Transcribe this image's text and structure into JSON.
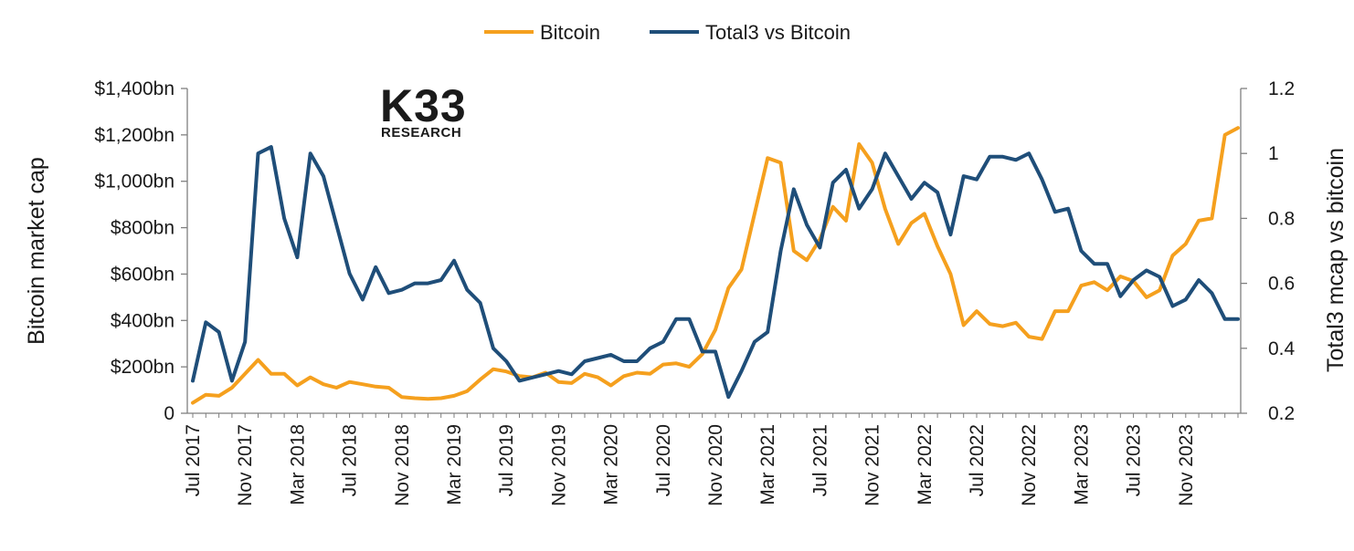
{
  "chart_data": {
    "type": "line",
    "title": "",
    "logo": {
      "main": "K33",
      "sub": "RESEARCH"
    },
    "legend": {
      "placement": "top-center"
    },
    "y_left": {
      "label": "Bitcoin market cap",
      "lim": [
        0,
        1400
      ],
      "ticks": [
        0,
        200,
        400,
        600,
        800,
        1000,
        1200,
        1400
      ],
      "tick_labels": [
        "0",
        "$200bn",
        "$400bn",
        "$600bn",
        "$800bn",
        "$1,000bn",
        "$1,200bn",
        "$1,400bn"
      ]
    },
    "y_right": {
      "label": "Total3 mcap vs bitcoin",
      "lim": [
        0.2,
        1.2
      ],
      "ticks": [
        0.2,
        0.4,
        0.6,
        0.8,
        1.0,
        1.2
      ],
      "tick_labels": [
        "0.2",
        "0.4",
        "0.6",
        "0.8",
        "1",
        "1.2"
      ]
    },
    "x": [
      "2017-07",
      "2017-08",
      "2017-09",
      "2017-10",
      "2017-11",
      "2017-12",
      "2018-01",
      "2018-02",
      "2018-03",
      "2018-04",
      "2018-05",
      "2018-06",
      "2018-07",
      "2018-08",
      "2018-09",
      "2018-10",
      "2018-11",
      "2018-12",
      "2019-01",
      "2019-02",
      "2019-03",
      "2019-04",
      "2019-05",
      "2019-06",
      "2019-07",
      "2019-08",
      "2019-09",
      "2019-10",
      "2019-11",
      "2019-12",
      "2020-01",
      "2020-02",
      "2020-03",
      "2020-04",
      "2020-05",
      "2020-06",
      "2020-07",
      "2020-08",
      "2020-09",
      "2020-10",
      "2020-11",
      "2020-12",
      "2021-01",
      "2021-02",
      "2021-03",
      "2021-04",
      "2021-05",
      "2021-06",
      "2021-07",
      "2021-08",
      "2021-09",
      "2021-10",
      "2021-11",
      "2021-12",
      "2022-01",
      "2022-02",
      "2022-03",
      "2022-04",
      "2022-05",
      "2022-06",
      "2022-07",
      "2022-08",
      "2022-09",
      "2022-10",
      "2022-11",
      "2022-12",
      "2023-01",
      "2023-02",
      "2023-03",
      "2023-04",
      "2023-05",
      "2023-06",
      "2023-07",
      "2023-08",
      "2023-09",
      "2023-10",
      "2023-11",
      "2023-12",
      "2024-01",
      "2024-02",
      "2024-03"
    ],
    "x_tick_labels": [
      {
        "x": "2017-07",
        "label": "Jul 2017"
      },
      {
        "x": "2017-11",
        "label": "Nov 2017"
      },
      {
        "x": "2018-03",
        "label": "Mar 2018"
      },
      {
        "x": "2018-07",
        "label": "Jul 2018"
      },
      {
        "x": "2018-11",
        "label": "Nov 2018"
      },
      {
        "x": "2019-03",
        "label": "Mar 2019"
      },
      {
        "x": "2019-07",
        "label": "Jul 2019"
      },
      {
        "x": "2019-11",
        "label": "Nov 2019"
      },
      {
        "x": "2020-03",
        "label": "Mar 2020"
      },
      {
        "x": "2020-07",
        "label": "Jul 2020"
      },
      {
        "x": "2020-11",
        "label": "Nov 2020"
      },
      {
        "x": "2021-03",
        "label": "Mar 2021"
      },
      {
        "x": "2021-07",
        "label": "Jul 2021"
      },
      {
        "x": "2021-11",
        "label": "Nov 2021"
      },
      {
        "x": "2022-03",
        "label": "Mar 2022"
      },
      {
        "x": "2022-07",
        "label": "Jul 2022"
      },
      {
        "x": "2022-11",
        "label": "Nov 2022"
      },
      {
        "x": "2023-03",
        "label": "Mar 2023"
      },
      {
        "x": "2023-07",
        "label": "Jul 2023"
      },
      {
        "x": "2023-11",
        "label": "Nov 2023"
      }
    ],
    "series": [
      {
        "name": "Bitcoin",
        "axis": "left",
        "color": "#F5A01E",
        "values": [
          45,
          80,
          75,
          110,
          170,
          230,
          170,
          170,
          120,
          155,
          125,
          110,
          135,
          125,
          115,
          110,
          70,
          65,
          62,
          65,
          75,
          95,
          145,
          190,
          180,
          160,
          155,
          175,
          135,
          130,
          170,
          155,
          120,
          160,
          175,
          170,
          210,
          215,
          200,
          255,
          360,
          540,
          620,
          860,
          1100,
          1080,
          700,
          660,
          750,
          890,
          830,
          1160,
          1080,
          880,
          730,
          820,
          860,
          720,
          600,
          380,
          440,
          385,
          375,
          390,
          330,
          320,
          440,
          440,
          550,
          565,
          530,
          590,
          570,
          500,
          530,
          680,
          730,
          830,
          840,
          1200,
          1230
        ]
      },
      {
        "name": "Total3 vs Bitcoin",
        "axis": "right",
        "color": "#1F4E79",
        "values": [
          0.3,
          0.48,
          0.45,
          0.3,
          0.42,
          1.0,
          1.02,
          0.8,
          0.68,
          1.0,
          0.93,
          0.78,
          0.63,
          0.55,
          0.65,
          0.57,
          0.58,
          0.6,
          0.6,
          0.61,
          0.67,
          0.58,
          0.54,
          0.4,
          0.36,
          0.3,
          0.31,
          0.32,
          0.33,
          0.32,
          0.36,
          0.37,
          0.38,
          0.36,
          0.36,
          0.4,
          0.42,
          0.49,
          0.49,
          0.39,
          0.39,
          0.25,
          0.33,
          0.42,
          0.45,
          0.7,
          0.89,
          0.78,
          0.71,
          0.91,
          0.95,
          0.83,
          0.89,
          1.0,
          0.93,
          0.86,
          0.91,
          0.88,
          0.75,
          0.93,
          0.92,
          0.99,
          0.99,
          0.98,
          1.0,
          0.92,
          0.82,
          0.83,
          0.7,
          0.66,
          0.66,
          0.56,
          0.61,
          0.64,
          0.62,
          0.53,
          0.55,
          0.61,
          0.57,
          0.49,
          0.49
        ]
      }
    ]
  }
}
